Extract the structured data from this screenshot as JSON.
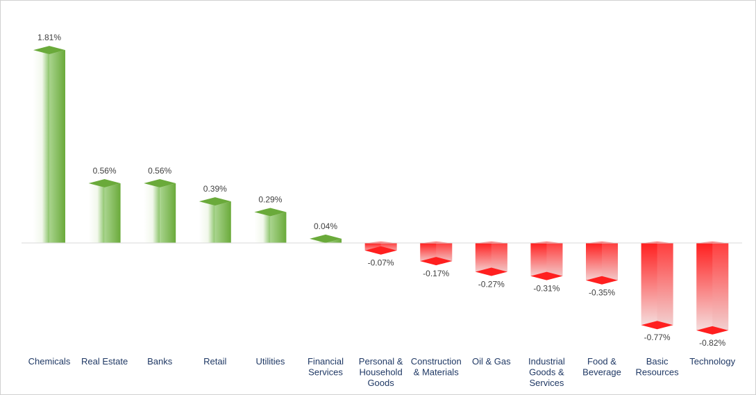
{
  "chart_data": {
    "type": "bar",
    "title": "",
    "xlabel": "",
    "ylabel": "",
    "categories": [
      "Chemicals",
      "Real Estate",
      "Banks",
      "Retail",
      "Utilities",
      "Financial Services",
      "Personal & Household Goods",
      "Construction & Materials",
      "Oil & Gas",
      "Industrial Goods & Services",
      "Food & Beverage",
      "Basic Resources",
      "Technology"
    ],
    "category_lines": [
      [
        "Chemicals"
      ],
      [
        "Real Estate"
      ],
      [
        "Banks"
      ],
      [
        "Retail"
      ],
      [
        "Utilities"
      ],
      [
        "Financial",
        "Services"
      ],
      [
        "Personal &",
        "Household",
        "Goods"
      ],
      [
        "Construction",
        "& Materials"
      ],
      [
        "Oil & Gas"
      ],
      [
        "Industrial",
        "Goods &",
        "Services"
      ],
      [
        "Food &",
        "Beverage"
      ],
      [
        "Basic",
        "Resources"
      ],
      [
        "Technology"
      ]
    ],
    "values": [
      1.81,
      0.56,
      0.56,
      0.39,
      0.29,
      0.04,
      -0.07,
      -0.17,
      -0.27,
      -0.31,
      -0.35,
      -0.77,
      -0.82
    ],
    "data_labels": [
      "1.81%",
      "0.56%",
      "0.56%",
      "0.39%",
      "0.29%",
      "0.04%",
      "-0.07%",
      "-0.17%",
      "-0.27%",
      "-0.31%",
      "-0.35%",
      "-0.77%",
      "-0.82%"
    ],
    "ylim": [
      -0.9,
      2.0
    ],
    "grid": false,
    "legend": "none",
    "colors": {
      "positive_dark": "#6aaa3a",
      "positive_light": "#f2f8ec",
      "negative_dark": "#ff1f1f",
      "negative_light": "#f4e6e6",
      "axis": "#d9d9d9",
      "category_text": "#1f3864",
      "value_text": "#404040"
    }
  }
}
